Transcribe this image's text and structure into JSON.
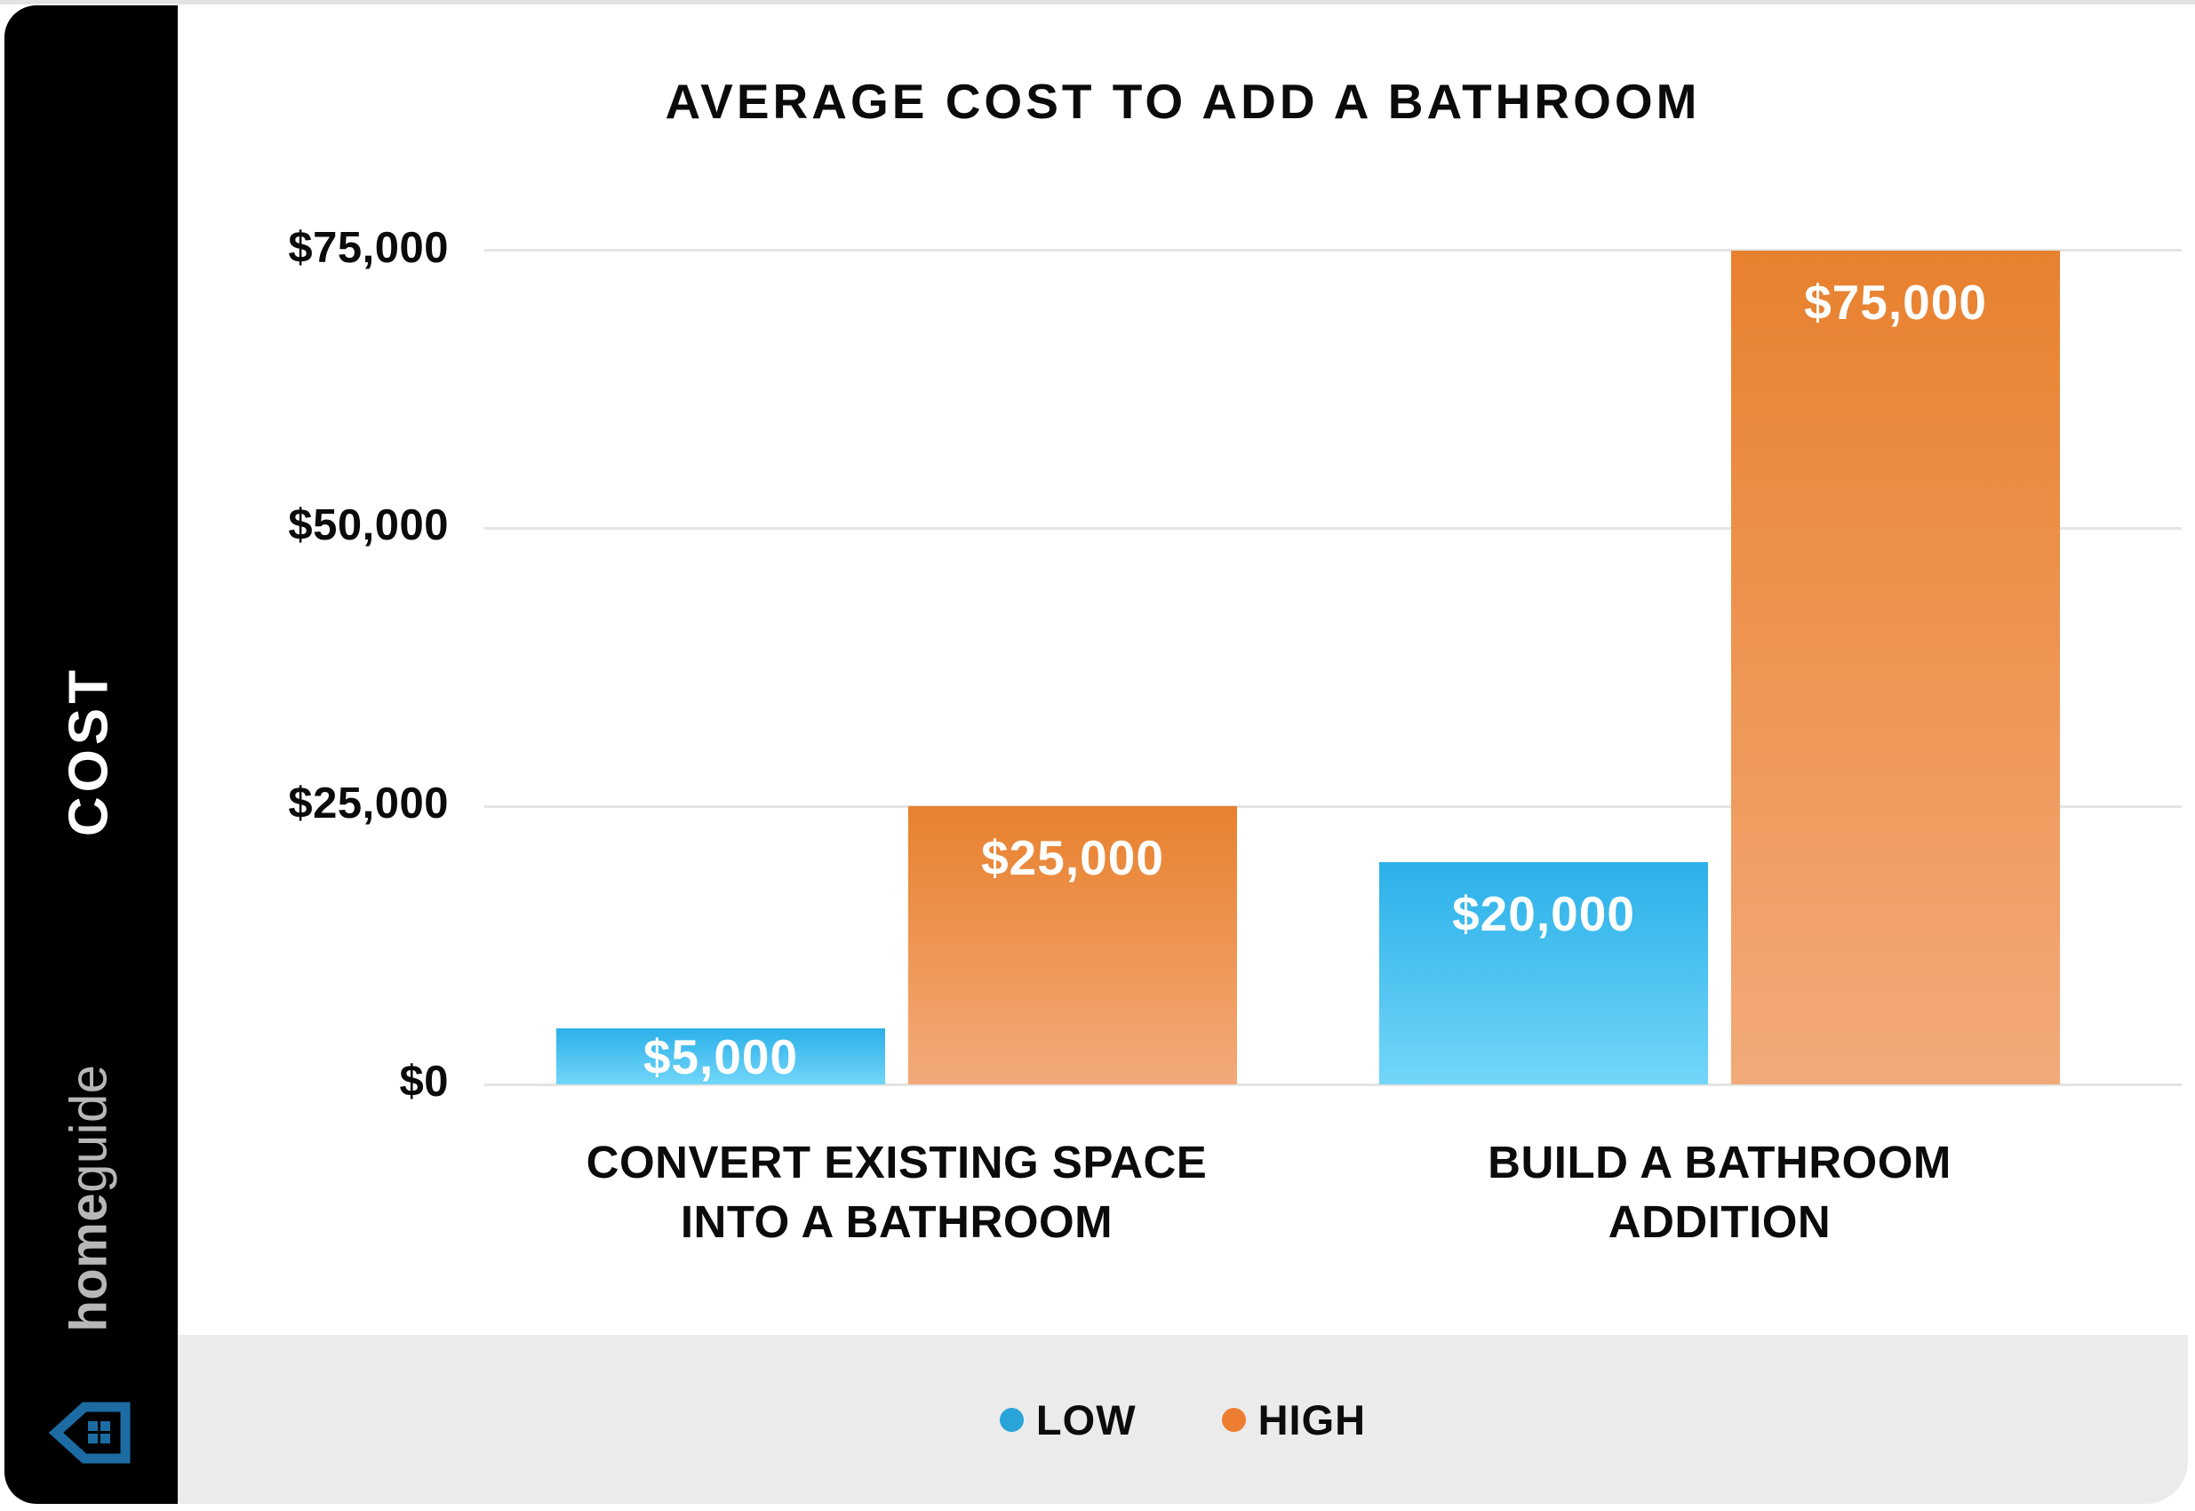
{
  "sidebar": {
    "cost_label": "COST",
    "brand_bold": "home",
    "brand_light": "guide",
    "house_icon_color": "#1c6ca3"
  },
  "chart_data": {
    "type": "bar",
    "title": "AVERAGE COST TO ADD A BATHROOM",
    "categories": [
      "CONVERT EXISTING SPACE INTO A BATHROOM",
      "BUILD A BATHROOM ADDITION"
    ],
    "category_lines": [
      [
        "CONVERT EXISTING SPACE",
        "INTO A BATHROOM"
      ],
      [
        "BUILD A BATHROOM",
        "ADDITION"
      ]
    ],
    "series": [
      {
        "name": "LOW",
        "values": [
          5000,
          20000
        ],
        "labels": [
          "$5,000",
          "$20,000"
        ],
        "bar_top_color": "#2bb0e9",
        "bar_bottom_color": "#72d6f9",
        "legend_color": "#29a4d9"
      },
      {
        "name": "HIGH",
        "values": [
          25000,
          75000
        ],
        "labels": [
          "$25,000",
          "$75,000"
        ],
        "bar_top_color": "#e8812e",
        "bar_bottom_color": "#f3aa79",
        "legend_color": "#ed7d31"
      }
    ],
    "ylabel": "COST",
    "ylim": [
      0,
      75000
    ],
    "yticks": [
      {
        "value": 75000,
        "label": "$75,000"
      },
      {
        "value": 50000,
        "label": "$50,000"
      },
      {
        "value": 25000,
        "label": "$25,000"
      },
      {
        "value": 0,
        "label": "$0"
      }
    ],
    "grid": true,
    "legend_position": "bottom"
  }
}
